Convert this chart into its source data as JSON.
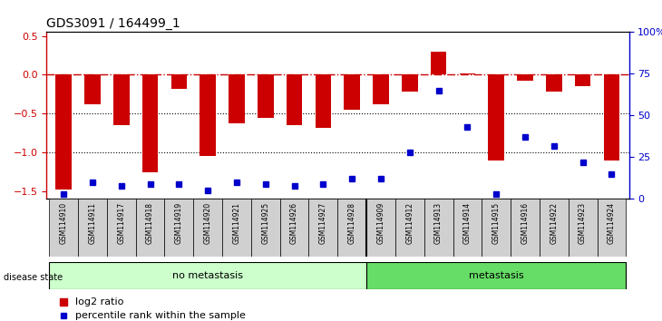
{
  "title": "GDS3091 / 164499_1",
  "samples": [
    "GSM114910",
    "GSM114911",
    "GSM114917",
    "GSM114918",
    "GSM114919",
    "GSM114920",
    "GSM114921",
    "GSM114925",
    "GSM114926",
    "GSM114927",
    "GSM114928",
    "GSM114909",
    "GSM114912",
    "GSM114913",
    "GSM114914",
    "GSM114915",
    "GSM114916",
    "GSM114922",
    "GSM114923",
    "GSM114924"
  ],
  "log2_ratio": [
    -1.48,
    -0.38,
    -0.65,
    -1.25,
    -0.18,
    -1.05,
    -0.62,
    -0.56,
    -0.65,
    -0.68,
    -0.45,
    -0.38,
    -0.22,
    0.3,
    0.02,
    -1.1,
    -0.08,
    -0.22,
    -0.15,
    -1.1
  ],
  "percentile": [
    3,
    10,
    8,
    9,
    9,
    5,
    10,
    9,
    8,
    9,
    12,
    12,
    28,
    65,
    43,
    3,
    37,
    32,
    22,
    15
  ],
  "no_metastasis_count": 11,
  "metastasis_count": 9,
  "bar_color": "#cc0000",
  "dot_color": "#0000cc",
  "bg_color": "#ffffff",
  "grid_color": "#000000",
  "ylim_left": [
    -1.6,
    0.55
  ],
  "ylim_right": [
    0,
    100
  ],
  "yticks_left": [
    -1.5,
    -1.0,
    -0.5,
    0,
    0.5
  ],
  "yticks_right": [
    0,
    25,
    50,
    75,
    100
  ],
  "hline_y": 0,
  "dotted_lines": [
    -0.5,
    -1.0
  ]
}
